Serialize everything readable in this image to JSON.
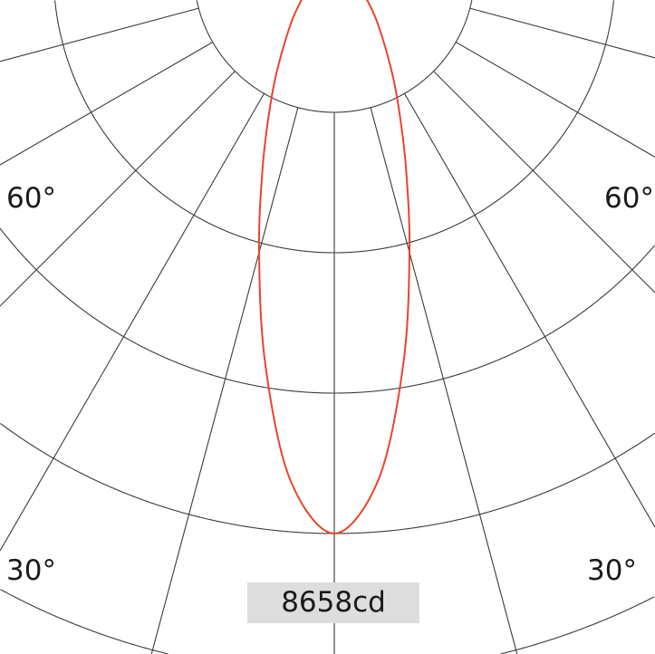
{
  "chart_data": {
    "type": "polar",
    "title": "",
    "max_intensity_label": "8658cd",
    "max_intensity": 8658,
    "unit": "cd",
    "angle_labels": {
      "left_60": "60°",
      "right_60": "60°",
      "left_30": "30°",
      "right_30": "30°"
    },
    "radial_grid_step_deg": 15,
    "grid": true,
    "series": [
      {
        "color": "#e8452c",
        "symmetric": true,
        "angles_deg": [
          0,
          5,
          10,
          15,
          20,
          25,
          30,
          40,
          50,
          60,
          75,
          90
        ],
        "candela": [
          8658,
          7848,
          6131,
          4478,
          3235,
          2368,
          1770,
          1044,
          647,
          404,
          171,
          0
        ]
      }
    ]
  },
  "colors": {
    "grid": "#3a3a3a",
    "curve": "#e8452c",
    "label_box": "#dddddd"
  }
}
